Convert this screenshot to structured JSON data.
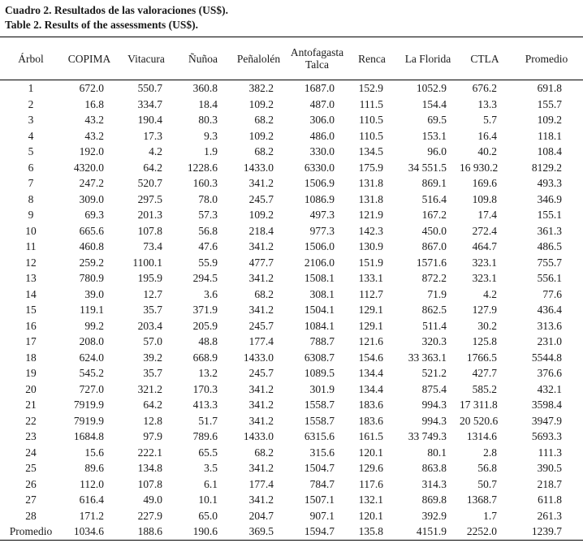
{
  "caption": {
    "line_es": "Cuadro 2. Resultados de las valoraciones (US$).",
    "line_en": "Table 2. Results of the assessments (US$)."
  },
  "table": {
    "columns": [
      "Árbol",
      "COPIMA",
      "Vitacura",
      "Ñuñoa",
      "Peñalolén",
      "Antofagasta Talca",
      "Renca",
      "La Florida",
      "CTLA",
      "Promedio"
    ],
    "rows": [
      [
        "1",
        "672.0",
        "550.7",
        "360.8",
        "382.2",
        "1687.0",
        "152.9",
        "1052.9",
        "676.2",
        "691.8"
      ],
      [
        "2",
        "16.8",
        "334.7",
        "18.4",
        "109.2",
        "487.0",
        "111.5",
        "154.4",
        "13.3",
        "155.7"
      ],
      [
        "3",
        "43.2",
        "190.4",
        "80.3",
        "68.2",
        "306.0",
        "110.5",
        "69.5",
        "5.7",
        "109.2"
      ],
      [
        "4",
        "43.2",
        "17.3",
        "9.3",
        "109.2",
        "486.0",
        "110.5",
        "153.1",
        "16.4",
        "118.1"
      ],
      [
        "5",
        "192.0",
        "4.2",
        "1.9",
        "68.2",
        "330.0",
        "134.5",
        "96.0",
        "40.2",
        "108.4"
      ],
      [
        "6",
        "4320.0",
        "64.2",
        "1228.6",
        "1433.0",
        "6330.0",
        "175.9",
        "34 551.5",
        "16 930.2",
        "8129.2"
      ],
      [
        "7",
        "247.2",
        "520.7",
        "160.3",
        "341.2",
        "1506.9",
        "131.8",
        "869.1",
        "169.6",
        "493.3"
      ],
      [
        "8",
        "309.0",
        "297.5",
        "78.0",
        "245.7",
        "1086.9",
        "131.8",
        "516.4",
        "109.8",
        "346.9"
      ],
      [
        "9",
        "69.3",
        "201.3",
        "57.3",
        "109.2",
        "497.3",
        "121.9",
        "167.2",
        "17.4",
        "155.1"
      ],
      [
        "10",
        "665.6",
        "107.8",
        "56.8",
        "218.4",
        "977.3",
        "142.3",
        "450.0",
        "272.4",
        "361.3"
      ],
      [
        "11",
        "460.8",
        "73.4",
        "47.6",
        "341.2",
        "1506.0",
        "130.9",
        "867.0",
        "464.7",
        "486.5"
      ],
      [
        "12",
        "259.2",
        "1100.1",
        "55.9",
        "477.7",
        "2106.0",
        "151.9",
        "1571.6",
        "323.1",
        "755.7"
      ],
      [
        "13",
        "780.9",
        "195.9",
        "294.5",
        "341.2",
        "1508.1",
        "133.1",
        "872.2",
        "323.1",
        "556.1"
      ],
      [
        "14",
        "39.0",
        "12.7",
        "3.6",
        "68.2",
        "308.1",
        "112.7",
        "71.9",
        "4.2",
        "77.6"
      ],
      [
        "15",
        "119.1",
        "35.7",
        "371.9",
        "341.2",
        "1504.1",
        "129.1",
        "862.5",
        "127.9",
        "436.4"
      ],
      [
        "16",
        "99.2",
        "203.4",
        "205.9",
        "245.7",
        "1084.1",
        "129.1",
        "511.4",
        "30.2",
        "313.6"
      ],
      [
        "17",
        "208.0",
        "57.0",
        "48.8",
        "177.4",
        "788.7",
        "121.6",
        "320.3",
        "125.8",
        "231.0"
      ],
      [
        "18",
        "624.0",
        "39.2",
        "668.9",
        "1433.0",
        "6308.7",
        "154.6",
        "33 363.1",
        "1766.5",
        "5544.8"
      ],
      [
        "19",
        "545.2",
        "35.7",
        "13.2",
        "245.7",
        "1089.5",
        "134.4",
        "521.2",
        "427.7",
        "376.6"
      ],
      [
        "20",
        "727.0",
        "321.2",
        "170.3",
        "341.2",
        "301.9",
        "134.4",
        "875.4",
        "585.2",
        "432.1"
      ],
      [
        "21",
        "7919.9",
        "64.2",
        "413.3",
        "341.2",
        "1558.7",
        "183.6",
        "994.3",
        "17 311.8",
        "3598.4"
      ],
      [
        "22",
        "7919.9",
        "12.8",
        "51.7",
        "341.2",
        "1558.7",
        "183.6",
        "994.3",
        "20 520.6",
        "3947.9"
      ],
      [
        "23",
        "1684.8",
        "97.9",
        "789.6",
        "1433.0",
        "6315.6",
        "161.5",
        "33 749.3",
        "1314.6",
        "5693.3"
      ],
      [
        "24",
        "15.6",
        "222.1",
        "65.5",
        "68.2",
        "315.6",
        "120.1",
        "80.1",
        "2.8",
        "111.3"
      ],
      [
        "25",
        "89.6",
        "134.8",
        "3.5",
        "341.2",
        "1504.7",
        "129.6",
        "863.8",
        "56.8",
        "390.5"
      ],
      [
        "26",
        "112.0",
        "107.8",
        "6.1",
        "177.4",
        "784.7",
        "117.6",
        "314.3",
        "50.7",
        "218.7"
      ],
      [
        "27",
        "616.4",
        "49.0",
        "10.1",
        "341.2",
        "1507.1",
        "132.1",
        "869.8",
        "1368.7",
        "611.8"
      ],
      [
        "28",
        "171.2",
        "227.9",
        "65.0",
        "204.7",
        "907.1",
        "120.1",
        "392.9",
        "1.7",
        "261.3"
      ],
      [
        "Promedio",
        "1034.6",
        "188.6",
        "190.6",
        "369.5",
        "1594.7",
        "135.8",
        "4151.9",
        "2252.0",
        "1239.7"
      ]
    ]
  }
}
